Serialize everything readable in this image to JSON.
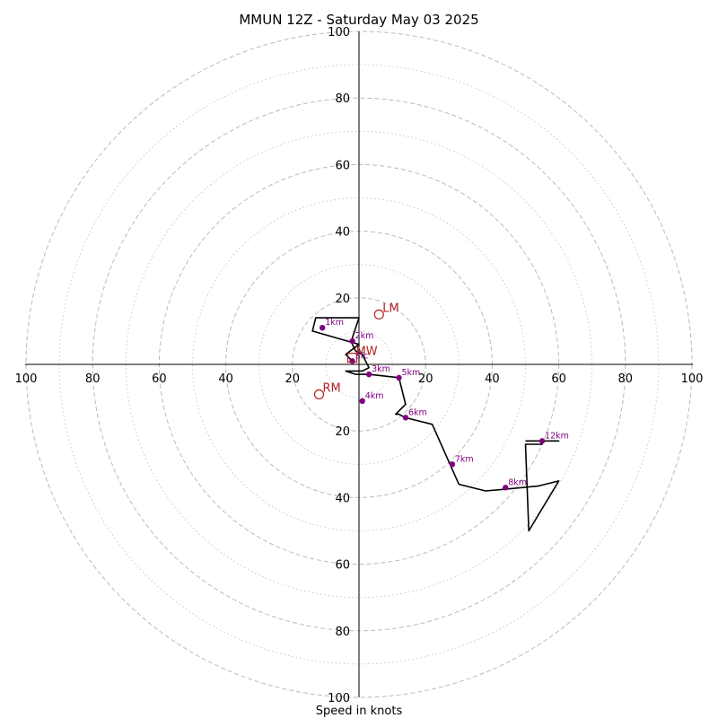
{
  "chart_data": {
    "type": "line",
    "title": "MMUN 12Z - Saturday May 03 2025",
    "xlabel": "Speed in knots",
    "ylabel": "",
    "xlim": [
      -100,
      100
    ],
    "ylim": [
      -100,
      100
    ],
    "major_rings": [
      20,
      40,
      60,
      80,
      100
    ],
    "minor_rings": [
      10,
      30,
      50,
      70,
      90
    ],
    "x_tick_labels": [
      "100",
      "80",
      "60",
      "40",
      "20",
      "20",
      "40",
      "60",
      "80",
      "100"
    ],
    "y_tick_labels": [
      "100",
      "80",
      "60",
      "40",
      "20",
      "20",
      "40",
      "60",
      "80",
      "100"
    ],
    "grid": true,
    "colors": {
      "trace": "#000000",
      "height_markers": "#800080",
      "storm_motion": "#b22222",
      "rings": "#bbbbbb"
    },
    "hodograph_trace": {
      "u": [
        -2,
        -4,
        0,
        -14,
        -13,
        0,
        -2,
        -2,
        -1,
        1,
        2,
        3,
        1,
        -4,
        -1,
        1,
        3,
        12,
        14,
        11,
        12,
        14,
        22,
        30,
        38,
        44,
        54,
        60,
        51,
        50,
        52,
        55,
        55,
        60,
        54,
        50
      ],
      "v": [
        1,
        3,
        6,
        10,
        14,
        14,
        8,
        6,
        4,
        3,
        1,
        -1,
        -2,
        -2,
        -3,
        -3,
        -3,
        -4,
        -12,
        -15,
        -15,
        -16,
        -18,
        -36,
        -38,
        -37.5,
        -36.5,
        -35,
        -50,
        -24,
        -24,
        -24,
        -23,
        -23,
        -23,
        -23
      ]
    },
    "height_markers": [
      {
        "label": "Sfc",
        "u": -2,
        "v": 1
      },
      {
        "label": "1km",
        "u": -11,
        "v": 11
      },
      {
        "label": "2km",
        "u": -2,
        "v": 7
      },
      {
        "label": "3km",
        "u": 3,
        "v": -3
      },
      {
        "label": "4km",
        "u": 1,
        "v": -11
      },
      {
        "label": "5km",
        "u": 12,
        "v": -4
      },
      {
        "label": "6km",
        "u": 14,
        "v": -16
      },
      {
        "label": "7km",
        "u": 28,
        "v": -30
      },
      {
        "label": "8km",
        "u": 44,
        "v": -37
      },
      {
        "label": "12km",
        "u": 55,
        "v": -23
      }
    ],
    "storm_motion": [
      {
        "label": "LM",
        "u": 6,
        "v": 15,
        "marker": "circle"
      },
      {
        "label": "RM",
        "u": -12,
        "v": -9,
        "marker": "circle"
      },
      {
        "label": "MW",
        "u": -2,
        "v": 2,
        "marker": "square"
      }
    ]
  }
}
